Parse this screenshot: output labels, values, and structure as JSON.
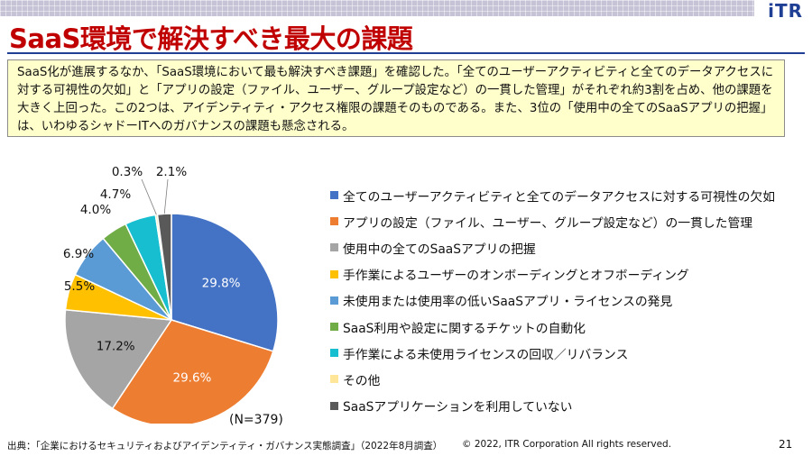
{
  "header": {
    "logo": "iTR"
  },
  "slide": {
    "title": "SaaS環境で解決すべき最大の課題",
    "summary": "SaaS化が進展するなか、「SaaS環境において最も解決すべき課題」を確認した。「全てのユーザーアクティビティと全てのデータアクセスに対する可視性の欠如」と「アプリの設定（ファイル、ユーザー、グループ設定など）の一貫した管理」がそれぞれ約3割を占め、他の課題を大きく上回った。この2つは、アイデンティティ・アクセス権限の課題そのものである。また、3位の「使用中の全てのSaaSアプリの把握」は、いわゆるシャドーITへのガバナンスの課題も懸念される。",
    "n_label": "(N=379)",
    "source": "出典：「企業におけるセキュリティおよびアイデンティティ・ガバナンス実態調査」（2022年8月調査）",
    "copyright": "© 2022, ITR Corporation  All rights reserved.",
    "page_number": "21"
  },
  "chart_data": {
    "type": "pie",
    "title": "",
    "start_angle_deg": 0,
    "direction": "clockwise",
    "legend_position": "right",
    "slices": [
      {
        "label": "全てのユーザーアクティビティと全てのデータアクセスに対する可視性の欠如",
        "value": 29.8,
        "value_label": "29.8%",
        "color": "#4472c4",
        "label_placement": "inside",
        "label_color": "#ffffff"
      },
      {
        "label": "アプリの設定（ファイル、ユーザー、グループ設定など）の一貫した管理",
        "value": 29.6,
        "value_label": "29.6%",
        "color": "#ed7d31",
        "label_placement": "inside",
        "label_color": "#ffffff"
      },
      {
        "label": "使用中の全てのSaaSアプリの把握",
        "value": 17.2,
        "value_label": "17.2%",
        "color": "#a5a5a5",
        "label_placement": "inside",
        "label_color": "#111111"
      },
      {
        "label": "手作業によるユーザーのオンボーディングとオフボーディング",
        "value": 5.5,
        "value_label": "5.5%",
        "color": "#ffc000",
        "label_placement": "outside",
        "label_color": "#111111"
      },
      {
        "label": "未使用または使用率の低いSaaSアプリ・ライセンスの発見",
        "value": 6.9,
        "value_label": "6.9%",
        "color": "#5b9bd5",
        "label_placement": "outside",
        "label_color": "#111111"
      },
      {
        "label": "SaaS利用や設定に関するチケットの自動化",
        "value": 4.0,
        "value_label": "4.0%",
        "color": "#70ad47",
        "label_placement": "outside",
        "label_color": "#111111"
      },
      {
        "label": "手作業による未使用ライセンスの回収／リバランス",
        "value": 4.7,
        "value_label": "4.7%",
        "color": "#17becf",
        "label_placement": "outside",
        "label_color": "#111111"
      },
      {
        "label": "その他",
        "value": 0.3,
        "value_label": "0.3%",
        "color": "#ffe699",
        "label_placement": "outside",
        "label_color": "#111111"
      },
      {
        "label": "SaaSアプリケーションを利用していない",
        "value": 2.1,
        "value_label": "2.1%",
        "color": "#595959",
        "label_placement": "outside",
        "label_color": "#111111"
      }
    ]
  }
}
